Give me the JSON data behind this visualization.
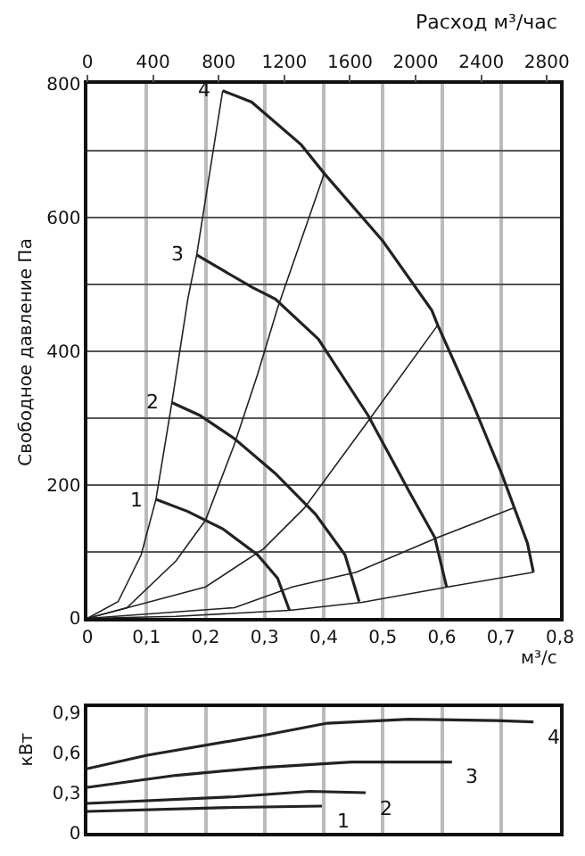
{
  "chart_data": [
    {
      "type": "line",
      "ylabel": "Свободное давление Па",
      "xlabel": "м³/с",
      "x2label": "Расход м³/час",
      "xlim": [
        0,
        0.8
      ],
      "xticks": [
        0,
        {
          "value": 0.1,
          "label": "0,1"
        },
        {
          "value": 0.2,
          "label": "0,2"
        },
        {
          "value": 0.3,
          "label": "0,3"
        },
        {
          "value": 0.4,
          "label": "0,4"
        },
        {
          "value": 0.5,
          "label": "0,5"
        },
        {
          "value": 0.6,
          "label": "0,6"
        },
        {
          "value": 0.7,
          "label": "0,7"
        },
        {
          "value": 0.8,
          "label": "0,8"
        }
      ],
      "x2lim": [
        0,
        2880
      ],
      "x2ticks": [
        0,
        400,
        800,
        1200,
        1600,
        2000,
        2400,
        2800
      ],
      "ylim": [
        0,
        800
      ],
      "yticks": [
        0,
        {
          "value": 100,
          "label": null
        },
        200,
        {
          "value": 300,
          "label": null
        },
        400,
        {
          "value": 500,
          "label": null
        },
        600,
        {
          "value": 700,
          "label": null
        },
        800
      ],
      "grid": true,
      "legend": false,
      "marker": "none",
      "line_style": "solid",
      "series": [
        {
          "name": "4",
          "color": "#222222",
          "x": [
            0.229,
            0.278,
            0.362,
            0.401,
            0.5,
            0.583,
            0.593,
            0.652,
            0.701,
            0.745,
            0.755
          ],
          "values": [
            790,
            773,
            709,
            666,
            565,
            461,
            439,
            322,
            217,
            112,
            69
          ]
        },
        {
          "name": "3",
          "color": "#222222",
          "x": [
            0.185,
            0.278,
            0.318,
            0.391,
            0.475,
            0.544,
            0.588,
            0.608
          ],
          "values": [
            544,
            496,
            478,
            418,
            304,
            191,
            121,
            47
          ]
        },
        {
          "name": "2",
          "color": "#222222",
          "x": [
            0.143,
            0.19,
            0.249,
            0.318,
            0.386,
            0.436,
            0.46
          ],
          "values": [
            323,
            304,
            269,
            217,
            156,
            95,
            25
          ]
        },
        {
          "name": "1",
          "color": "#222222",
          "x": [
            0.116,
            0.17,
            0.229,
            0.288,
            0.322,
            0.342
          ],
          "values": [
            178,
            160,
            134,
            95,
            60,
            12
          ]
        },
        {
          "color": "#222222",
          "x": [
            0,
            0.052,
            0.091,
            0.116,
            0.143,
            0.17,
            0.185,
            0.229
          ],
          "values": [
            0,
            25,
            95,
            178,
            323,
            478,
            544,
            790
          ]
        },
        {
          "color": "#222222",
          "x": [
            0,
            0.067,
            0.15,
            0.2,
            0.249,
            0.288,
            0.322,
            0.401
          ],
          "values": [
            0,
            16,
            86,
            147,
            261,
            365,
            465,
            666
          ]
        },
        {
          "color": "#222222",
          "x": [
            0,
            0.2,
            0.298,
            0.367,
            0.475,
            0.593
          ],
          "values": [
            0,
            47,
            104,
            165,
            295,
            439
          ]
        },
        {
          "color": "#222222",
          "x": [
            0,
            0.249,
            0.347,
            0.455,
            0.593,
            0.721
          ],
          "values": [
            0,
            16,
            47,
            69,
            121,
            165
          ]
        },
        {
          "color": "#222222",
          "x": [
            0,
            0.15,
            0.342,
            0.465,
            0.61,
            0.755
          ],
          "values": [
            0,
            3,
            12,
            24,
            47,
            69
          ]
        }
      ]
    },
    {
      "type": "line",
      "ylabel": "кВт",
      "xlim": [
        0,
        0.8
      ],
      "ylim": [
        0,
        0.94
      ],
      "yticks": [
        0,
        {
          "value": 0.3,
          "label": "0,3"
        },
        {
          "value": 0.6,
          "label": "0,6"
        },
        {
          "value": 0.9,
          "label": "0,9"
        }
      ],
      "grid": "x",
      "legend": false,
      "marker": "none",
      "line_style": "solid",
      "tick_labels": "y",
      "series": [
        {
          "name": "4",
          "color": "#222222",
          "x": [
            0,
            0.101,
            0.3,
            0.406,
            0.544,
            0.692,
            0.755
          ],
          "values": [
            0.48,
            0.58,
            0.73,
            0.82,
            0.85,
            0.84,
            0.83
          ]
        },
        {
          "name": "3",
          "color": "#222222",
          "x": [
            0,
            0.15,
            0.3,
            0.447,
            0.617
          ],
          "values": [
            0.34,
            0.43,
            0.49,
            0.53,
            0.53
          ]
        },
        {
          "name": "2",
          "color": "#222222",
          "x": [
            0,
            0.25,
            0.376,
            0.471
          ],
          "values": [
            0.22,
            0.27,
            0.31,
            0.3
          ]
        },
        {
          "name": "1",
          "color": "#222222",
          "x": [
            0,
            0.25,
            0.397
          ],
          "values": [
            0.16,
            0.19,
            0.2
          ]
        }
      ]
    }
  ]
}
